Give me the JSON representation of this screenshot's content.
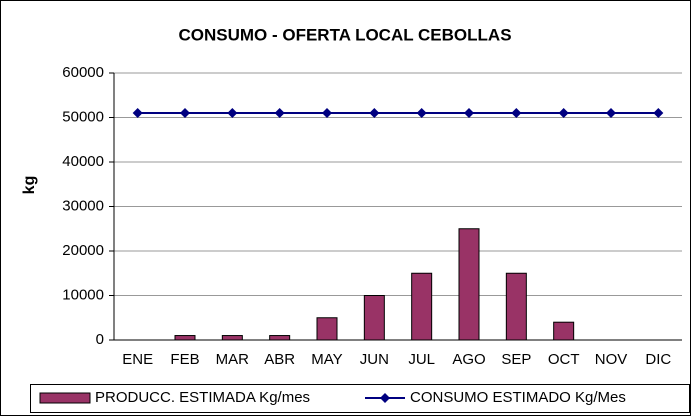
{
  "chart_data": {
    "type": "bar",
    "title": "CONSUMO - OFERTA LOCAL CEBOLLAS",
    "y_label": "kg",
    "categories": [
      "ENE",
      "FEB",
      "MAR",
      "ABR",
      "MAY",
      "JUN",
      "JUL",
      "AGO",
      "SEP",
      "OCT",
      "NOV",
      "DIC"
    ],
    "series": [
      {
        "name": "PRODUCC. ESTIMADA Kg/mes",
        "type": "bar",
        "color": "#993366",
        "values": [
          0,
          1000,
          1000,
          1000,
          5000,
          10000,
          15000,
          25000,
          15000,
          4000,
          0,
          0
        ]
      },
      {
        "name": "CONSUMO ESTIMADO Kg/Mes",
        "type": "line",
        "color": "#000080",
        "values": [
          51000,
          51000,
          51000,
          51000,
          51000,
          51000,
          51000,
          51000,
          51000,
          51000,
          51000,
          51000
        ]
      }
    ],
    "ylim": [
      0,
      60000
    ],
    "yticks": [
      0,
      10000,
      20000,
      30000,
      40000,
      50000,
      60000
    ],
    "grid": true,
    "legend": "bottom"
  }
}
